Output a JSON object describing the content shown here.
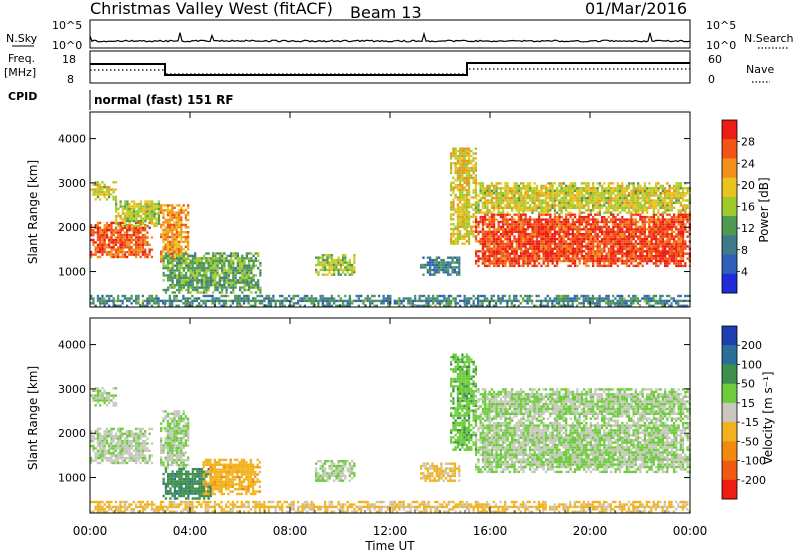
{
  "header": {
    "station": "Christmas Valley West (fitACF)",
    "beam": "Beam 13",
    "date": "01/Mar/2016"
  },
  "top_panels": {
    "nsky_label": "N.Sky",
    "nsearch_label": "N.Search",
    "noise_ticks": [
      "10^5",
      "10^0"
    ],
    "freq_label": "Freq.",
    "freq_unit": "[MHz]",
    "freq_ticks": [
      "18",
      "8"
    ],
    "nave_label": "Nave",
    "nave_ticks": [
      "60",
      "0"
    ],
    "cpid_label": "CPID",
    "cpid_text": "normal (fast) 151 RF"
  },
  "chart_data": [
    {
      "type": "heatmap",
      "name": "power",
      "ylabel": "Slant Range [km]",
      "xlabel": "",
      "x_ticks": [
        "00:00",
        "04:00",
        "08:00",
        "12:00",
        "16:00",
        "20:00",
        "00:00"
      ],
      "y_ticks": [
        1000,
        2000,
        3000,
        4000
      ],
      "ylim": [
        200,
        4600
      ],
      "xlim_hours": [
        0,
        24
      ],
      "colorbar": {
        "label": "Power [dB]",
        "ticks": [
          4,
          8,
          12,
          16,
          20,
          24,
          28
        ],
        "range": [
          0,
          32
        ],
        "colors": [
          "#1f2bd6",
          "#2f5fb8",
          "#3e7a8a",
          "#4f9a52",
          "#9fca2c",
          "#e9c320",
          "#f29019",
          "#f25416",
          "#ee1c14"
        ]
      },
      "regions": [
        {
          "t0": 0.0,
          "t1": 2.5,
          "r0": 1300,
          "r1": 2100,
          "level": 27
        },
        {
          "t0": 0.0,
          "t1": 1.0,
          "r0": 2600,
          "r1": 3000,
          "level": 18
        },
        {
          "t0": 1.0,
          "t1": 2.8,
          "r0": 2000,
          "r1": 2600,
          "level": 17
        },
        {
          "t0": 2.8,
          "t1": 3.9,
          "r0": 1200,
          "r1": 2500,
          "level": 23
        },
        {
          "t0": 2.9,
          "t1": 6.8,
          "r0": 500,
          "r1": 1400,
          "level": 13
        },
        {
          "t0": 9.0,
          "t1": 10.6,
          "r0": 900,
          "r1": 1350,
          "level": 16
        },
        {
          "t0": 13.2,
          "t1": 14.8,
          "r0": 900,
          "r1": 1300,
          "level": 9
        },
        {
          "t0": 14.4,
          "t1": 15.4,
          "r0": 1600,
          "r1": 3800,
          "level": 19
        },
        {
          "t0": 15.4,
          "t1": 24.0,
          "r0": 1100,
          "r1": 2300,
          "level": 28
        },
        {
          "t0": 15.4,
          "t1": 24.0,
          "r0": 2300,
          "r1": 3000,
          "level": 18
        },
        {
          "t0": 0.0,
          "t1": 24.0,
          "r0": 200,
          "r1": 450,
          "level": 10
        }
      ]
    },
    {
      "type": "heatmap",
      "name": "velocity",
      "ylabel": "Slant Range [km]",
      "xlabel": "Time UT",
      "x_ticks": [
        "00:00",
        "04:00",
        "08:00",
        "12:00",
        "16:00",
        "20:00",
        "00:00"
      ],
      "y_ticks": [
        1000,
        2000,
        3000,
        4000
      ],
      "ylim": [
        200,
        4600
      ],
      "xlim_hours": [
        0,
        24
      ],
      "colorbar": {
        "label": "Velocity [m s⁻¹]",
        "ticks": [
          200,
          100,
          50,
          15,
          -15,
          -50,
          -100,
          -200
        ],
        "colors": [
          "#1d3fb0",
          "#2a6f9a",
          "#3e8f4e",
          "#6ccc3a",
          "#c8c8bf",
          "#f2b21e",
          "#f28a12",
          "#f25a12",
          "#ee1c14"
        ]
      },
      "regions": [
        {
          "t0": 0.0,
          "t1": 2.5,
          "r0": 1300,
          "r1": 2100,
          "level": -5
        },
        {
          "t0": 0.0,
          "t1": 1.0,
          "r0": 2600,
          "r1": 3000,
          "level": 0
        },
        {
          "t0": 2.8,
          "t1": 3.9,
          "r0": 1200,
          "r1": 2500,
          "level": 0
        },
        {
          "t0": 2.9,
          "t1": 4.8,
          "r0": 500,
          "r1": 1200,
          "level": 60
        },
        {
          "t0": 4.5,
          "t1": 6.8,
          "r0": 600,
          "r1": 1400,
          "level": -60
        },
        {
          "t0": 9.0,
          "t1": 10.6,
          "r0": 900,
          "r1": 1350,
          "level": 0
        },
        {
          "t0": 13.2,
          "t1": 14.8,
          "r0": 900,
          "r1": 1300,
          "level": -40
        },
        {
          "t0": 14.4,
          "t1": 15.4,
          "r0": 1600,
          "r1": 3800,
          "level": 20
        },
        {
          "t0": 15.4,
          "t1": 24.0,
          "r0": 1100,
          "r1": 2300,
          "level": 0
        },
        {
          "t0": 15.4,
          "t1": 24.0,
          "r0": 2300,
          "r1": 3000,
          "level": 0
        },
        {
          "t0": 0.0,
          "t1": 24.0,
          "r0": 200,
          "r1": 450,
          "level": -40
        }
      ]
    }
  ]
}
